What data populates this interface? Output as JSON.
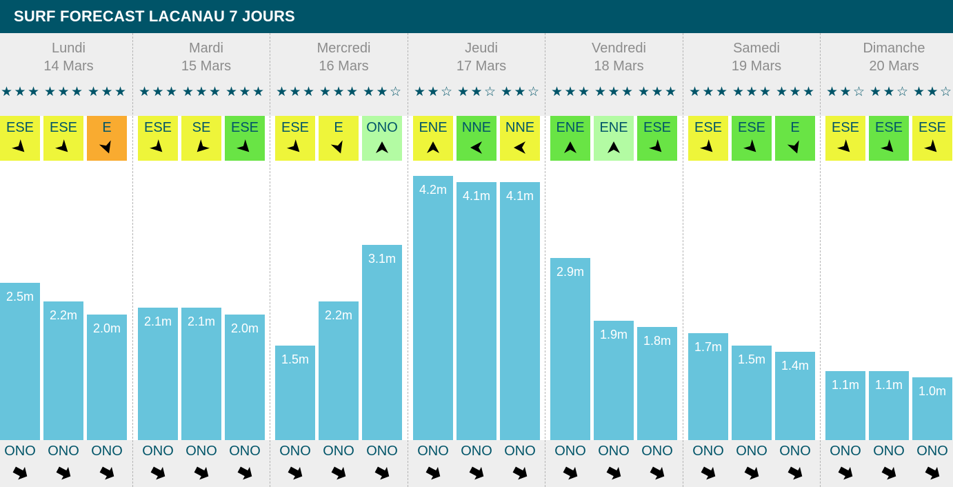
{
  "header": {
    "title": "SURF FORECAST LACANAU 7 JOURS",
    "background": "#005468"
  },
  "colors": {
    "bar": "#67c4dc",
    "wind_yellow": "#eef53a",
    "wind_green": "#69e445",
    "wind_light_green": "#b3fba3",
    "wind_orange": "#f9ab30",
    "text_teal": "#005468",
    "day_text": "#8c8c8c"
  },
  "icons": {
    "star_full": "star-filled-icon",
    "star_empty": "star-outline-icon",
    "wind_arrow": "wind-direction-arrow-icon",
    "swell_arrow": "swell-direction-arrow-icon"
  },
  "days": [
    {
      "name": "Lundi",
      "date": "14 Mars"
    },
    {
      "name": "Mardi",
      "date": "15 Mars"
    },
    {
      "name": "Mercredi",
      "date": "16 Mars"
    },
    {
      "name": "Jeudi",
      "date": "17 Mars"
    },
    {
      "name": "Vendredi",
      "date": "18 Mars"
    },
    {
      "name": "Samedi",
      "date": "19 Mars"
    },
    {
      "name": "Dimanche",
      "date": "20 Mars"
    }
  ],
  "chart_data": {
    "type": "bar",
    "unit": "m",
    "ylim": [
      0,
      4.2
    ],
    "series": [
      {
        "name": "",
        "values": [
          2.5,
          2.2,
          2.0,
          2.1,
          2.1,
          2.0,
          1.5,
          2.2,
          3.1,
          4.2,
          4.1,
          4.1,
          2.9,
          1.9,
          1.8,
          1.7,
          1.5,
          1.4,
          1.1,
          1.1,
          1.0
        ]
      }
    ],
    "labels": [
      "2.5m",
      "2.2m",
      "2.0m",
      "2.1m",
      "2.1m",
      "2.0m",
      "1.5m",
      "2.2m",
      "3.1m",
      "4.2m",
      "4.1m",
      "4.1m",
      "2.9m",
      "1.9m",
      "1.8m",
      "1.7m",
      "1.5m",
      "1.4m",
      "1.1m",
      "1.1m",
      "1.0m"
    ],
    "stars": [
      3,
      3,
      3,
      3,
      3,
      3,
      3,
      3,
      2,
      2,
      2,
      2,
      3,
      3,
      3,
      3,
      3,
      3,
      2,
      2,
      2
    ],
    "wind": [
      {
        "dir": "ESE",
        "color": "#eef53a",
        "arrow_deg": 135
      },
      {
        "dir": "ESE",
        "color": "#eef53a",
        "arrow_deg": 135
      },
      {
        "dir": "E",
        "color": "#f9ab30",
        "arrow_deg": 160
      },
      {
        "dir": "ESE",
        "color": "#eef53a",
        "arrow_deg": 135
      },
      {
        "dir": "SE",
        "color": "#eef53a",
        "arrow_deg": 225
      },
      {
        "dir": "ESE",
        "color": "#69e445",
        "arrow_deg": 135
      },
      {
        "dir": "ESE",
        "color": "#eef53a",
        "arrow_deg": 135
      },
      {
        "dir": "E",
        "color": "#eef53a",
        "arrow_deg": 160
      },
      {
        "dir": "ONO",
        "color": "#b3fba3",
        "arrow_deg": 0
      },
      {
        "dir": "ENE",
        "color": "#eef53a",
        "arrow_deg": 0
      },
      {
        "dir": "NNE",
        "color": "#69e445",
        "arrow_deg": 270
      },
      {
        "dir": "NNE",
        "color": "#eef53a",
        "arrow_deg": 270
      },
      {
        "dir": "ENE",
        "color": "#69e445",
        "arrow_deg": 0
      },
      {
        "dir": "ENE",
        "color": "#b3fba3",
        "arrow_deg": 0
      },
      {
        "dir": "ESE",
        "color": "#69e445",
        "arrow_deg": 135
      },
      {
        "dir": "ESE",
        "color": "#eef53a",
        "arrow_deg": 135
      },
      {
        "dir": "ESE",
        "color": "#69e445",
        "arrow_deg": 135
      },
      {
        "dir": "E",
        "color": "#69e445",
        "arrow_deg": 160
      },
      {
        "dir": "ESE",
        "color": "#eef53a",
        "arrow_deg": 135
      },
      {
        "dir": "ESE",
        "color": "#69e445",
        "arrow_deg": 135
      },
      {
        "dir": "ESE",
        "color": "#eef53a",
        "arrow_deg": 135
      }
    ],
    "swell_dir": [
      "ONO",
      "ONO",
      "ONO",
      "ONO",
      "ONO",
      "ONO",
      "ONO",
      "ONO",
      "ONO",
      "ONO",
      "ONO",
      "ONO",
      "ONO",
      "ONO",
      "ONO",
      "ONO",
      "ONO",
      "ONO",
      "ONO",
      "ONO",
      "ONO"
    ]
  }
}
